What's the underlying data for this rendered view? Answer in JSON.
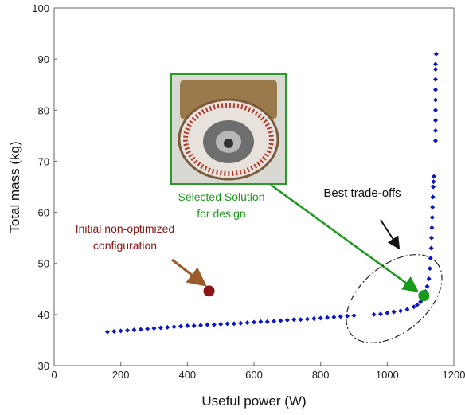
{
  "chart_data": {
    "type": "scatter",
    "xlabel": "Useful power (W)",
    "ylabel": "Total mass (kg)",
    "xlim": [
      0,
      1200
    ],
    "ylim": [
      30,
      100
    ],
    "xticks": [
      0,
      200,
      400,
      600,
      800,
      1000,
      1200
    ],
    "yticks": [
      30,
      40,
      50,
      60,
      70,
      80,
      90,
      100
    ],
    "color": "#0a14c8",
    "x": [
      160,
      180,
      200,
      220,
      240,
      260,
      280,
      300,
      320,
      340,
      360,
      380,
      400,
      420,
      440,
      460,
      480,
      500,
      520,
      540,
      560,
      580,
      600,
      620,
      640,
      660,
      680,
      700,
      720,
      740,
      760,
      780,
      800,
      820,
      840,
      860,
      880,
      900,
      960,
      980,
      1000,
      1020,
      1040,
      1060,
      1080,
      1090,
      1100,
      1105,
      1110,
      1115,
      1120,
      1125,
      1128,
      1130,
      1132,
      1133,
      1134,
      1135,
      1136,
      1137,
      1138,
      1139,
      1140,
      1145,
      1145,
      1145,
      1145,
      1145,
      1145,
      1145,
      1145,
      1145,
      1147
    ],
    "values": [
      36.6,
      36.7,
      36.8,
      36.9,
      37.0,
      37.1,
      37.2,
      37.3,
      37.4,
      37.5,
      37.6,
      37.7,
      37.8,
      37.8,
      37.9,
      38.0,
      38.0,
      38.1,
      38.2,
      38.2,
      38.3,
      38.4,
      38.5,
      38.6,
      38.6,
      38.7,
      38.8,
      38.9,
      39.0,
      39.0,
      39.1,
      39.2,
      39.3,
      39.4,
      39.5,
      39.6,
      39.7,
      39.8,
      40.0,
      40.1,
      40.3,
      40.5,
      40.7,
      41.0,
      41.5,
      41.9,
      42.5,
      43.0,
      43.8,
      44.5,
      45.5,
      47,
      49,
      51,
      53,
      55,
      57,
      59,
      61,
      63,
      65,
      66,
      67,
      74,
      76,
      78,
      80,
      82,
      84,
      86,
      88,
      89,
      91
    ],
    "annotations": [
      {
        "lines": [
          "Initial non-optimized",
          "configuration"
        ],
        "x": 465,
        "y": 44.6,
        "color": "#8b1414"
      },
      {
        "lines": [
          "Selected Solution",
          "for design"
        ],
        "x": 1110,
        "y": 43.7,
        "color": "#1a9a1a"
      },
      {
        "lines": [
          "Best trade-offs"
        ],
        "color": "#111111"
      }
    ]
  }
}
